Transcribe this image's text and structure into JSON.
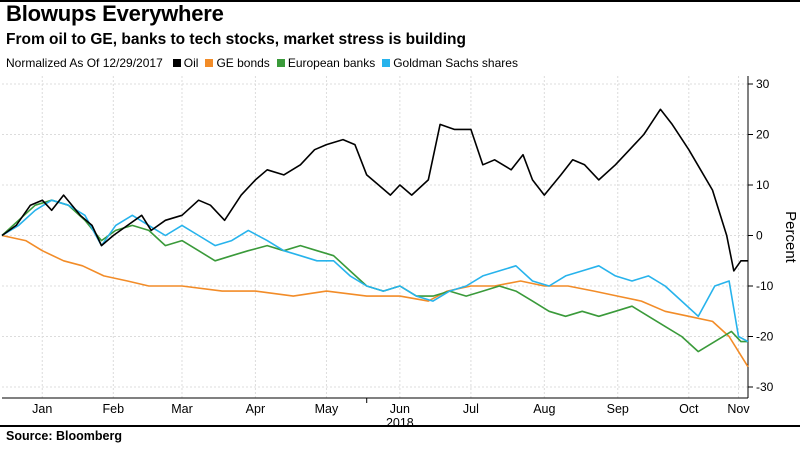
{
  "title": "Blowups Everywhere",
  "subtitle": "From oil to GE, banks to tech stocks, market stress is building",
  "legend_note": "Normalized As Of 12/29/2017",
  "source": "Source: Bloomberg",
  "chart_data": {
    "type": "line",
    "ylabel": "Percent",
    "ylim": [
      -30,
      30
    ],
    "yticks": [
      30,
      20,
      10,
      0,
      -10,
      -20,
      -30
    ],
    "y_axis_side": "right",
    "grid": true,
    "legend": "top-left",
    "x_range": [
      "2017-12-29",
      "2018-11-09"
    ],
    "x_ticks": [
      {
        "label": "Jan",
        "date": "2018-01-15"
      },
      {
        "label": "Feb",
        "date": "2018-02-14"
      },
      {
        "label": "Mar",
        "date": "2018-03-15"
      },
      {
        "label": "Apr",
        "date": "2018-04-15"
      },
      {
        "label": "May",
        "date": "2018-05-15"
      },
      {
        "label": "Jun",
        "date": "2018-06-15"
      },
      {
        "label": "Jul",
        "date": "2018-07-15"
      },
      {
        "label": "Aug",
        "date": "2018-08-15"
      },
      {
        "label": "Sep",
        "date": "2018-09-15"
      },
      {
        "label": "Oct",
        "date": "2018-10-15"
      },
      {
        "label": "Nov",
        "date": "2018-11-05"
      }
    ],
    "x_year_label": {
      "label": "2018",
      "date": "2018-06-15"
    },
    "series": [
      {
        "name": "Oil",
        "color": "#000000",
        "points": [
          [
            "2017-12-29",
            0
          ],
          [
            "2018-01-04",
            2
          ],
          [
            "2018-01-10",
            6
          ],
          [
            "2018-01-15",
            7
          ],
          [
            "2018-01-19",
            5
          ],
          [
            "2018-01-24",
            8
          ],
          [
            "2018-01-31",
            4
          ],
          [
            "2018-02-05",
            2
          ],
          [
            "2018-02-09",
            -2
          ],
          [
            "2018-02-14",
            0
          ],
          [
            "2018-02-20",
            2
          ],
          [
            "2018-02-26",
            4
          ],
          [
            "2018-03-02",
            1
          ],
          [
            "2018-03-08",
            3
          ],
          [
            "2018-03-15",
            4
          ],
          [
            "2018-03-22",
            7
          ],
          [
            "2018-03-27",
            6
          ],
          [
            "2018-04-02",
            3
          ],
          [
            "2018-04-09",
            8
          ],
          [
            "2018-04-15",
            11
          ],
          [
            "2018-04-20",
            13
          ],
          [
            "2018-04-27",
            12
          ],
          [
            "2018-05-04",
            14
          ],
          [
            "2018-05-10",
            17
          ],
          [
            "2018-05-15",
            18
          ],
          [
            "2018-05-22",
            19
          ],
          [
            "2018-05-27",
            18
          ],
          [
            "2018-06-01",
            12
          ],
          [
            "2018-06-06",
            10
          ],
          [
            "2018-06-11",
            8
          ],
          [
            "2018-06-15",
            10
          ],
          [
            "2018-06-20",
            8
          ],
          [
            "2018-06-27",
            11
          ],
          [
            "2018-07-02",
            22
          ],
          [
            "2018-07-08",
            21
          ],
          [
            "2018-07-15",
            21
          ],
          [
            "2018-07-20",
            14
          ],
          [
            "2018-07-25",
            15
          ],
          [
            "2018-08-01",
            13
          ],
          [
            "2018-08-06",
            16
          ],
          [
            "2018-08-10",
            11
          ],
          [
            "2018-08-15",
            8
          ],
          [
            "2018-08-22",
            12
          ],
          [
            "2018-08-27",
            15
          ],
          [
            "2018-09-01",
            14
          ],
          [
            "2018-09-07",
            11
          ],
          [
            "2018-09-14",
            14
          ],
          [
            "2018-09-20",
            17
          ],
          [
            "2018-09-26",
            20
          ],
          [
            "2018-10-03",
            25
          ],
          [
            "2018-10-08",
            22
          ],
          [
            "2018-10-15",
            17
          ],
          [
            "2018-10-20",
            13
          ],
          [
            "2018-10-25",
            9
          ],
          [
            "2018-10-31",
            0
          ],
          [
            "2018-11-03",
            -7
          ],
          [
            "2018-11-06",
            -5
          ],
          [
            "2018-11-09",
            -5
          ]
        ]
      },
      {
        "name": "GE bonds",
        "color": "#f28c28",
        "points": [
          [
            "2017-12-29",
            0
          ],
          [
            "2018-01-08",
            -1
          ],
          [
            "2018-01-15",
            -3
          ],
          [
            "2018-01-24",
            -5
          ],
          [
            "2018-02-01",
            -6
          ],
          [
            "2018-02-10",
            -8
          ],
          [
            "2018-02-20",
            -9
          ],
          [
            "2018-03-01",
            -10
          ],
          [
            "2018-03-15",
            -10
          ],
          [
            "2018-04-01",
            -11
          ],
          [
            "2018-04-15",
            -11
          ],
          [
            "2018-05-01",
            -12
          ],
          [
            "2018-05-15",
            -11
          ],
          [
            "2018-06-01",
            -12
          ],
          [
            "2018-06-15",
            -12
          ],
          [
            "2018-06-27",
            -13
          ],
          [
            "2018-07-05",
            -11
          ],
          [
            "2018-07-15",
            -10
          ],
          [
            "2018-07-25",
            -10
          ],
          [
            "2018-08-05",
            -9
          ],
          [
            "2018-08-15",
            -10
          ],
          [
            "2018-08-25",
            -10
          ],
          [
            "2018-09-05",
            -11
          ],
          [
            "2018-09-15",
            -12
          ],
          [
            "2018-09-25",
            -13
          ],
          [
            "2018-10-05",
            -15
          ],
          [
            "2018-10-15",
            -16
          ],
          [
            "2018-10-25",
            -17
          ],
          [
            "2018-11-01",
            -20
          ],
          [
            "2018-11-05",
            -23
          ],
          [
            "2018-11-09",
            -26
          ]
        ]
      },
      {
        "name": "European banks",
        "color": "#3a9a3a",
        "points": [
          [
            "2017-12-29",
            0
          ],
          [
            "2018-01-05",
            3
          ],
          [
            "2018-01-12",
            6
          ],
          [
            "2018-01-19",
            7
          ],
          [
            "2018-01-26",
            6
          ],
          [
            "2018-02-02",
            3
          ],
          [
            "2018-02-09",
            -1
          ],
          [
            "2018-02-15",
            1
          ],
          [
            "2018-02-22",
            2
          ],
          [
            "2018-03-01",
            1
          ],
          [
            "2018-03-08",
            -2
          ],
          [
            "2018-03-15",
            -1
          ],
          [
            "2018-03-22",
            -3
          ],
          [
            "2018-03-29",
            -5
          ],
          [
            "2018-04-05",
            -4
          ],
          [
            "2018-04-12",
            -3
          ],
          [
            "2018-04-20",
            -2
          ],
          [
            "2018-04-27",
            -3
          ],
          [
            "2018-05-04",
            -2
          ],
          [
            "2018-05-11",
            -3
          ],
          [
            "2018-05-18",
            -4
          ],
          [
            "2018-05-25",
            -7
          ],
          [
            "2018-06-01",
            -10
          ],
          [
            "2018-06-08",
            -11
          ],
          [
            "2018-06-15",
            -10
          ],
          [
            "2018-06-22",
            -12
          ],
          [
            "2018-06-29",
            -12
          ],
          [
            "2018-07-06",
            -11
          ],
          [
            "2018-07-13",
            -12
          ],
          [
            "2018-07-20",
            -11
          ],
          [
            "2018-07-27",
            -10
          ],
          [
            "2018-08-03",
            -11
          ],
          [
            "2018-08-10",
            -13
          ],
          [
            "2018-08-17",
            -15
          ],
          [
            "2018-08-24",
            -16
          ],
          [
            "2018-08-31",
            -15
          ],
          [
            "2018-09-07",
            -16
          ],
          [
            "2018-09-14",
            -15
          ],
          [
            "2018-09-21",
            -14
          ],
          [
            "2018-09-28",
            -16
          ],
          [
            "2018-10-05",
            -18
          ],
          [
            "2018-10-12",
            -20
          ],
          [
            "2018-10-19",
            -23
          ],
          [
            "2018-10-26",
            -21
          ],
          [
            "2018-11-02",
            -19
          ],
          [
            "2018-11-06",
            -21
          ],
          [
            "2018-11-09",
            -21
          ]
        ]
      },
      {
        "name": "Goldman Sachs shares",
        "color": "#27b3ec",
        "points": [
          [
            "2017-12-29",
            0
          ],
          [
            "2018-01-05",
            2
          ],
          [
            "2018-01-12",
            5
          ],
          [
            "2018-01-19",
            7
          ],
          [
            "2018-01-26",
            6
          ],
          [
            "2018-02-02",
            4
          ],
          [
            "2018-02-09",
            -2
          ],
          [
            "2018-02-15",
            2
          ],
          [
            "2018-02-22",
            4
          ],
          [
            "2018-03-01",
            2
          ],
          [
            "2018-03-08",
            0
          ],
          [
            "2018-03-15",
            2
          ],
          [
            "2018-03-22",
            0
          ],
          [
            "2018-03-29",
            -2
          ],
          [
            "2018-04-05",
            -1
          ],
          [
            "2018-04-12",
            1
          ],
          [
            "2018-04-20",
            -1
          ],
          [
            "2018-04-27",
            -3
          ],
          [
            "2018-05-04",
            -4
          ],
          [
            "2018-05-11",
            -5
          ],
          [
            "2018-05-18",
            -5
          ],
          [
            "2018-05-25",
            -8
          ],
          [
            "2018-06-01",
            -10
          ],
          [
            "2018-06-08",
            -11
          ],
          [
            "2018-06-15",
            -10
          ],
          [
            "2018-06-22",
            -12
          ],
          [
            "2018-06-29",
            -13
          ],
          [
            "2018-07-06",
            -11
          ],
          [
            "2018-07-13",
            -10
          ],
          [
            "2018-07-20",
            -8
          ],
          [
            "2018-07-27",
            -7
          ],
          [
            "2018-08-03",
            -6
          ],
          [
            "2018-08-10",
            -9
          ],
          [
            "2018-08-17",
            -10
          ],
          [
            "2018-08-24",
            -8
          ],
          [
            "2018-08-31",
            -7
          ],
          [
            "2018-09-07",
            -6
          ],
          [
            "2018-09-14",
            -8
          ],
          [
            "2018-09-21",
            -9
          ],
          [
            "2018-09-28",
            -8
          ],
          [
            "2018-10-05",
            -10
          ],
          [
            "2018-10-12",
            -13
          ],
          [
            "2018-10-19",
            -16
          ],
          [
            "2018-10-26",
            -10
          ],
          [
            "2018-11-01",
            -9
          ],
          [
            "2018-11-05",
            -20
          ],
          [
            "2018-11-09",
            -21
          ]
        ]
      }
    ]
  }
}
